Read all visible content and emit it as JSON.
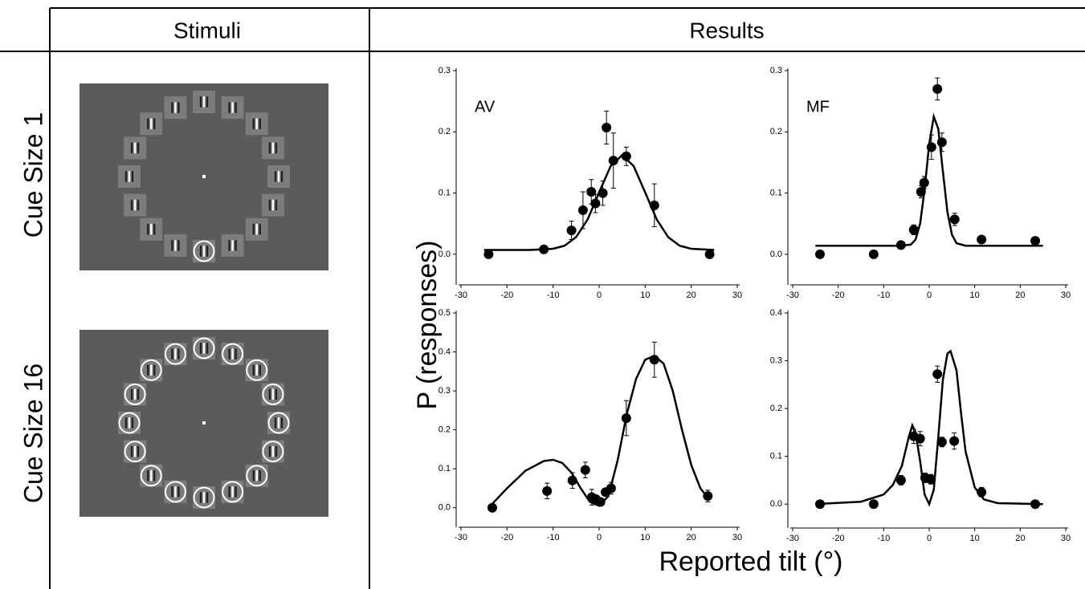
{
  "figure": {
    "column_headers": [
      "Stimuli",
      "Results"
    ],
    "row_labels": [
      "Cue Size 1",
      "Cue Size 16"
    ],
    "ylabel": "P (responses)",
    "xlabel": "Reported tilt (°)"
  },
  "chart_data": [
    {
      "type": "scatter",
      "label": "AV",
      "x": [
        -24,
        -12,
        -6,
        -3.5,
        -1.7,
        -0.8,
        0.8,
        1.6,
        3.1,
        5.9,
        12,
        24
      ],
      "values": [
        0.0,
        0.008,
        0.039,
        0.072,
        0.102,
        0.083,
        0.1,
        0.207,
        0.153,
        0.16,
        0.08,
        0.0
      ],
      "errors": [
        0,
        0.005,
        0.015,
        0.03,
        0.02,
        0.015,
        0.02,
        0.027,
        0.045,
        0.015,
        0.035,
        0
      ],
      "fit_x": [
        -25,
        -20,
        -15,
        -10,
        -7.5,
        -5,
        -2.5,
        0,
        2.5,
        5,
        7.5,
        10,
        12.5,
        15,
        17.5,
        20,
        25
      ],
      "fit_values": [
        0.007,
        0.007,
        0.007,
        0.009,
        0.014,
        0.028,
        0.057,
        0.101,
        0.144,
        0.162,
        0.144,
        0.101,
        0.057,
        0.028,
        0.014,
        0.009,
        0.007
      ],
      "xlim": [
        -30,
        30
      ],
      "xticks": [
        -30,
        -20,
        -10,
        0,
        10,
        20,
        30
      ],
      "ylim": [
        -0.05,
        0.3
      ],
      "yticks": [
        {
          "value": 0,
          "label": "0.0"
        },
        0.1,
        0.2,
        0.3
      ]
    },
    {
      "type": "scatter",
      "label": "MF",
      "x": [
        -24,
        -12.2,
        -6.2,
        -3.4,
        -1.8,
        -1.1,
        0.5,
        1.8,
        2.8,
        5.6,
        11.5,
        23.3
      ],
      "values": [
        0.0,
        0.0,
        0.015,
        0.04,
        0.102,
        0.117,
        0.175,
        0.27,
        0.183,
        0.057,
        0.024,
        0.022
      ],
      "errors": [
        0,
        0,
        0.005,
        0.008,
        0.01,
        0.01,
        0.02,
        0.018,
        0.015,
        0.01,
        0.005,
        0.004
      ],
      "fit_x": [
        -25,
        -10,
        -6,
        -4,
        -3,
        -2,
        -1,
        0,
        1,
        2,
        3,
        4,
        5,
        6,
        8,
        25
      ],
      "fit_values": [
        0.014,
        0.014,
        0.014,
        0.016,
        0.024,
        0.05,
        0.106,
        0.18,
        0.225,
        0.205,
        0.136,
        0.069,
        0.032,
        0.018,
        0.014,
        0.014
      ],
      "xlim": [
        -30,
        30
      ],
      "xticks": [
        -30,
        -20,
        -10,
        0,
        10,
        20,
        30
      ],
      "ylim": [
        -0.05,
        0.3
      ],
      "yticks": [
        {
          "value": 0,
          "label": "0.0"
        },
        0.1,
        0.2,
        0.3
      ]
    },
    {
      "type": "scatter",
      "x": [
        -23.2,
        -11.3,
        -5.8,
        -3,
        -1.6,
        -0.7,
        0.3,
        1.4,
        2.6,
        5.9,
        12,
        23.6
      ],
      "values": [
        0.0,
        0.043,
        0.07,
        0.097,
        0.027,
        0.022,
        0.015,
        0.04,
        0.05,
        0.23,
        0.38,
        0.03
      ],
      "errors": [
        0,
        0.02,
        0.02,
        0.02,
        0.02,
        0.01,
        0.01,
        0.01,
        0.015,
        0.045,
        0.045,
        0.015
      ],
      "fit_x": [
        -24,
        -20,
        -16,
        -12,
        -10,
        -8,
        -6,
        -4,
        -2,
        0,
        2,
        4,
        6,
        8,
        10,
        12,
        14,
        16,
        18,
        20,
        22,
        24
      ],
      "fit_values": [
        0,
        0.05,
        0.095,
        0.12,
        0.123,
        0.115,
        0.09,
        0.05,
        0.015,
        0.005,
        0.03,
        0.12,
        0.24,
        0.33,
        0.38,
        0.39,
        0.37,
        0.3,
        0.2,
        0.11,
        0.05,
        0.02
      ],
      "xlim": [
        -30,
        30
      ],
      "xticks": [
        -30,
        -20,
        -10,
        0,
        10,
        20,
        30
      ],
      "ylim": [
        -0.05,
        0.5
      ],
      "yticks": [
        {
          "value": 0,
          "label": "0.0"
        },
        0.1,
        0.2,
        0.3,
        0.4,
        0.5
      ]
    },
    {
      "type": "scatter",
      "x": [
        -24,
        -12.2,
        -6.2,
        -3.4,
        -2,
        -0.9,
        0.35,
        1.8,
        2.8,
        5.5,
        11.5,
        23.3
      ],
      "values": [
        0.0,
        0.0,
        0.05,
        0.142,
        0.137,
        0.055,
        0.052,
        0.272,
        0.13,
        0.132,
        0.025,
        0.0
      ],
      "errors": [
        0,
        0,
        0.01,
        0.015,
        0.015,
        0.01,
        0.01,
        0.017,
        0.01,
        0.017,
        0.01,
        0
      ],
      "fit_x": [
        -25,
        -15,
        -10,
        -8,
        -6,
        -4.5,
        -3.7,
        -3,
        -2,
        -1,
        0,
        1,
        2,
        3,
        4,
        4.7,
        6,
        7,
        8,
        10,
        12,
        15,
        25
      ],
      "fit_values": [
        0.0,
        0.005,
        0.02,
        0.04,
        0.08,
        0.14,
        0.165,
        0.15,
        0.09,
        0.02,
        0.0,
        0.03,
        0.14,
        0.26,
        0.315,
        0.32,
        0.28,
        0.19,
        0.11,
        0.035,
        0.01,
        0.002,
        0.0
      ],
      "xlim": [
        -30,
        30
      ],
      "xticks": [
        -30,
        -20,
        -10,
        0,
        10,
        20,
        30
      ],
      "ylim": [
        -0.05,
        0.4
      ],
      "yticks": [
        {
          "value": 0,
          "label": "0.0"
        },
        0.1,
        0.2,
        0.3,
        0.4
      ]
    }
  ]
}
